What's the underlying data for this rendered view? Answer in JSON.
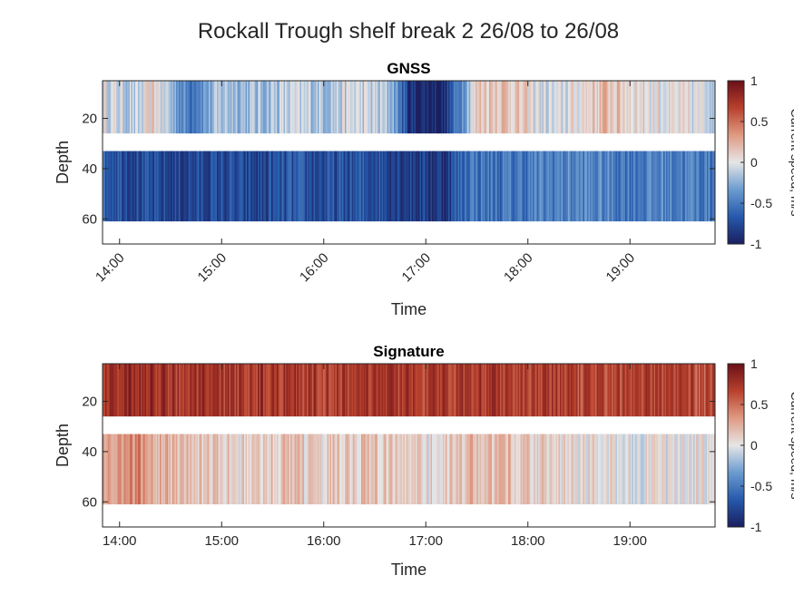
{
  "title": "Rockall Trough shelf break 2 26/08 to 26/08",
  "chart_data": [
    {
      "type": "heatmap",
      "title": "GNSS",
      "xlabel": "Time",
      "ylabel": "Depth",
      "colorbar_label": "Current speed, m/s",
      "xlim": [
        "13:50",
        "19:50"
      ],
      "ylim": [
        70,
        5
      ],
      "x_ticks": [
        "14:00",
        "15:00",
        "16:00",
        "17:00",
        "18:00",
        "19:00"
      ],
      "x_tick_rotation": 45,
      "y_ticks": [
        20,
        40,
        60
      ],
      "clim": [
        -1,
        1
      ],
      "colorbar_ticks": [
        1,
        0.5,
        0,
        -0.5,
        -1
      ],
      "colormap": [
        "#1b1e5e",
        "#2559ab",
        "#6b9bd0",
        "#e6e6e6",
        "#df9a83",
        "#b8412d",
        "#6a0f18"
      ],
      "bands": [
        {
          "depth_top": 5,
          "depth_bottom": 26,
          "profile": [
            [
              "13:50",
              0.0
            ],
            [
              "14:10",
              -0.15
            ],
            [
              "14:20",
              0.1
            ],
            [
              "14:30",
              -0.2
            ],
            [
              "14:40",
              -0.5
            ],
            [
              "15:00",
              -0.15
            ],
            [
              "15:20",
              -0.2
            ],
            [
              "15:40",
              -0.1
            ],
            [
              "16:00",
              -0.15
            ],
            [
              "16:20",
              -0.05
            ],
            [
              "16:40",
              -0.2
            ],
            [
              "16:50",
              -0.9
            ],
            [
              "17:10",
              -0.95
            ],
            [
              "17:20",
              -0.4
            ],
            [
              "17:30",
              0.15
            ],
            [
              "17:45",
              0.2
            ],
            [
              "18:00",
              0.05
            ],
            [
              "18:15",
              -0.1
            ],
            [
              "18:30",
              0.05
            ],
            [
              "18:45",
              0.2
            ],
            [
              "19:00",
              0.1
            ],
            [
              "19:20",
              0.0
            ],
            [
              "19:50",
              -0.05
            ]
          ]
        },
        {
          "depth_top": 33,
          "depth_bottom": 61,
          "profile": [
            [
              "13:50",
              -0.6
            ],
            [
              "14:10",
              -0.75
            ],
            [
              "14:30",
              -0.8
            ],
            [
              "15:00",
              -0.75
            ],
            [
              "15:20",
              -0.8
            ],
            [
              "15:40",
              -0.7
            ],
            [
              "16:00",
              -0.75
            ],
            [
              "16:30",
              -0.7
            ],
            [
              "16:50",
              -0.8
            ],
            [
              "17:10",
              -0.85
            ],
            [
              "17:25",
              -0.5
            ],
            [
              "17:40",
              -0.55
            ],
            [
              "18:00",
              -0.5
            ],
            [
              "18:20",
              -0.45
            ],
            [
              "18:40",
              -0.45
            ],
            [
              "19:00",
              -0.5
            ],
            [
              "19:20",
              -0.45
            ],
            [
              "19:50",
              -0.5
            ]
          ]
        }
      ]
    },
    {
      "type": "heatmap",
      "title": "Signature",
      "xlabel": "Time",
      "ylabel": "Depth",
      "colorbar_label": "Current speed, m/s",
      "xlim": [
        "13:50",
        "19:50"
      ],
      "ylim": [
        70,
        5
      ],
      "x_ticks": [
        "14:00",
        "15:00",
        "16:00",
        "17:00",
        "18:00",
        "19:00"
      ],
      "x_tick_rotation": 0,
      "y_ticks": [
        20,
        40,
        60
      ],
      "clim": [
        -1,
        1
      ],
      "colorbar_ticks": [
        1,
        0.5,
        0,
        -0.5,
        -1
      ],
      "colormap": [
        "#1b1e5e",
        "#2559ab",
        "#6b9bd0",
        "#e6e6e6",
        "#df9a83",
        "#b8412d",
        "#6a0f18"
      ],
      "bands": [
        {
          "depth_top": 5,
          "depth_bottom": 26,
          "profile": [
            [
              "13:50",
              0.75
            ],
            [
              "14:10",
              0.8
            ],
            [
              "14:30",
              0.75
            ],
            [
              "15:00",
              0.7
            ],
            [
              "15:30",
              0.75
            ],
            [
              "16:00",
              0.7
            ],
            [
              "16:30",
              0.75
            ],
            [
              "17:00",
              0.7
            ],
            [
              "17:30",
              0.75
            ],
            [
              "18:00",
              0.7
            ],
            [
              "18:30",
              0.65
            ],
            [
              "19:00",
              0.7
            ],
            [
              "19:30",
              0.65
            ],
            [
              "19:50",
              0.6
            ]
          ]
        },
        {
          "depth_top": 33,
          "depth_bottom": 61,
          "profile": [
            [
              "13:50",
              0.25
            ],
            [
              "14:10",
              0.4
            ],
            [
              "14:30",
              0.2
            ],
            [
              "15:00",
              0.1
            ],
            [
              "15:30",
              0.15
            ],
            [
              "16:00",
              0.1
            ],
            [
              "16:30",
              0.15
            ],
            [
              "17:00",
              0.05
            ],
            [
              "17:30",
              0.2
            ],
            [
              "18:00",
              0.15
            ],
            [
              "18:30",
              0.05
            ],
            [
              "19:00",
              0.0
            ],
            [
              "19:50",
              0.0
            ]
          ]
        }
      ]
    }
  ]
}
